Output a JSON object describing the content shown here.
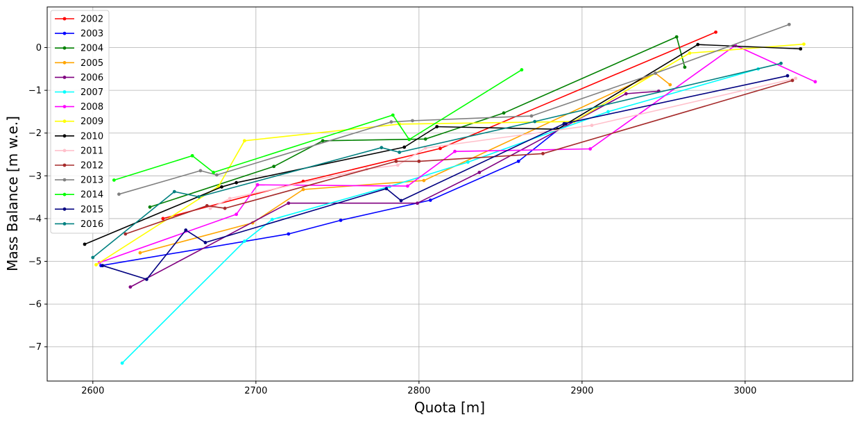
{
  "chart_data": {
    "type": "line",
    "xlabel": "Quota [m]",
    "ylabel": "Mass Balance [m w.e.]",
    "xlim": [
      2572,
      3066
    ],
    "ylim": [
      -7.8,
      0.95
    ],
    "xticks": [
      2600,
      2700,
      2800,
      2900,
      3000
    ],
    "yticks": [
      0,
      -1,
      -2,
      -3,
      -4,
      -5,
      -6,
      -7
    ],
    "xtick_labels": [
      "2600",
      "2700",
      "2800",
      "2900",
      "3000"
    ],
    "ytick_labels": [
      "0",
      "−1",
      "−2",
      "−3",
      "−4",
      "−5",
      "−6",
      "−7"
    ],
    "grid": true,
    "legend_position": "top-left",
    "series": [
      {
        "name": "2002",
        "color": "#ff0000",
        "points": [
          [
            2643,
            -4.0
          ],
          [
            2729,
            -3.13
          ],
          [
            2813,
            -2.36
          ],
          [
            2982,
            0.36
          ]
        ]
      },
      {
        "name": "2003",
        "color": "#0000ff",
        "points": [
          [
            2605,
            -5.1
          ],
          [
            2720,
            -4.36
          ],
          [
            2752,
            -4.04
          ],
          [
            2807,
            -3.57
          ],
          [
            2861,
            -2.66
          ],
          [
            2890,
            -1.78
          ]
        ]
      },
      {
        "name": "2004",
        "color": "#008000",
        "points": [
          [
            2635,
            -3.73
          ],
          [
            2711,
            -2.78
          ],
          [
            2741,
            -2.18
          ],
          [
            2804,
            -2.14
          ],
          [
            2852,
            -1.53
          ],
          [
            2958,
            0.25
          ],
          [
            2963,
            -0.46
          ]
        ]
      },
      {
        "name": "2005",
        "color": "#ffa500",
        "points": [
          [
            2629,
            -4.8
          ],
          [
            2698,
            -4.1
          ],
          [
            2729,
            -3.32
          ],
          [
            2803,
            -3.11
          ],
          [
            2945,
            -0.6
          ],
          [
            2954,
            -0.87
          ]
        ]
      },
      {
        "name": "2006",
        "color": "#800080",
        "points": [
          [
            2623,
            -5.6
          ],
          [
            2720,
            -3.64
          ],
          [
            2799,
            -3.64
          ],
          [
            2837,
            -2.92
          ],
          [
            2927,
            -1.08
          ],
          [
            2947,
            -1.02
          ]
        ]
      },
      {
        "name": "2007",
        "color": "#00ffff",
        "points": [
          [
            2618,
            -7.38
          ],
          [
            2693,
            -4.53
          ],
          [
            2710,
            -4.02
          ],
          [
            2782,
            -3.25
          ],
          [
            2830,
            -2.68
          ],
          [
            2916,
            -1.5
          ],
          [
            3008,
            -0.5
          ]
        ]
      },
      {
        "name": "2008",
        "color": "#ff00ff",
        "points": [
          [
            2604,
            -5.03
          ],
          [
            2688,
            -3.9
          ],
          [
            2701,
            -3.21
          ],
          [
            2793,
            -3.24
          ],
          [
            2822,
            -2.43
          ],
          [
            2905,
            -2.37
          ],
          [
            2994,
            0.05
          ],
          [
            3043,
            -0.8
          ]
        ]
      },
      {
        "name": "2009",
        "color": "#ffff00",
        "points": [
          [
            2602,
            -5.08
          ],
          [
            2677,
            -3.25
          ],
          [
            2693,
            -2.18
          ],
          [
            2788,
            -1.79
          ],
          [
            2895,
            -1.73
          ],
          [
            2966,
            -0.13
          ],
          [
            3036,
            0.08
          ]
        ]
      },
      {
        "name": "2010",
        "color": "#000000",
        "points": [
          [
            2595,
            -4.6
          ],
          [
            2679,
            -3.26
          ],
          [
            2688,
            -3.16
          ],
          [
            2791,
            -2.33
          ],
          [
            2811,
            -1.85
          ],
          [
            2885,
            -1.91
          ],
          [
            2971,
            0.07
          ],
          [
            3034,
            -0.03
          ]
        ]
      },
      {
        "name": "2011",
        "color": "#ffc0cb",
        "points": [
          [
            2672,
            -3.76
          ],
          [
            2684,
            -3.53
          ],
          [
            2768,
            -2.84
          ],
          [
            2787,
            -2.75
          ],
          [
            2804,
            -2.35
          ],
          [
            2906,
            -1.82
          ],
          [
            3031,
            -0.72
          ]
        ]
      },
      {
        "name": "2012",
        "color": "#a52a2a",
        "points": [
          [
            2620,
            -4.36
          ],
          [
            2670,
            -3.7
          ],
          [
            2681,
            -3.76
          ],
          [
            2786,
            -2.66
          ],
          [
            2800,
            -2.66
          ],
          [
            2876,
            -2.48
          ],
          [
            3029,
            -0.77
          ]
        ]
      },
      {
        "name": "2013",
        "color": "#808080",
        "points": [
          [
            2616,
            -3.43
          ],
          [
            2666,
            -2.88
          ],
          [
            2676,
            -2.98
          ],
          [
            2783,
            -1.74
          ],
          [
            2796,
            -1.71
          ],
          [
            2869,
            -1.6
          ],
          [
            2945,
            -0.6
          ],
          [
            3027,
            0.54
          ]
        ]
      },
      {
        "name": "2014",
        "color": "#00ff00",
        "points": [
          [
            2613,
            -3.1
          ],
          [
            2661,
            -2.53
          ],
          [
            2674,
            -2.92
          ],
          [
            2784,
            -1.58
          ],
          [
            2794,
            -2.15
          ],
          [
            2863,
            -0.52
          ]
        ]
      },
      {
        "name": "2015",
        "color": "#000080",
        "points": [
          [
            2606,
            -5.1
          ],
          [
            2633,
            -5.42
          ],
          [
            2657,
            -4.27
          ],
          [
            2669,
            -4.56
          ],
          [
            2780,
            -3.3
          ],
          [
            2789,
            -3.58
          ],
          [
            2889,
            -1.78
          ],
          [
            3026,
            -0.66
          ]
        ]
      },
      {
        "name": "2016",
        "color": "#008080",
        "points": [
          [
            2600,
            -4.91
          ],
          [
            2650,
            -3.37
          ],
          [
            2665,
            -3.49
          ],
          [
            2777,
            -2.34
          ],
          [
            2788,
            -2.45
          ],
          [
            2871,
            -1.73
          ],
          [
            3022,
            -0.37
          ]
        ]
      }
    ]
  }
}
